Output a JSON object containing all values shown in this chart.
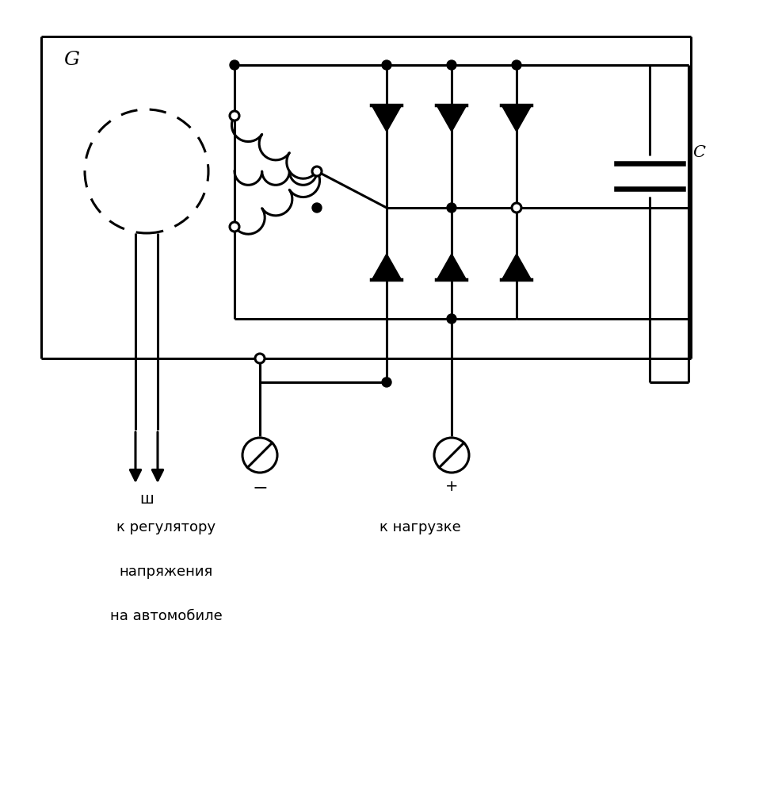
{
  "bg_color": "#ffffff",
  "line_color": "#000000",
  "lw": 2.2,
  "fig_width": 9.58,
  "fig_height": 10.24,
  "dpi": 100,
  "label_G": "G",
  "label_C": "C",
  "label_sh": "ш",
  "label_minus": "−",
  "label_plus": "+",
  "text_reg_1": "к регулятору",
  "text_reg_2": "напряжения",
  "text_reg_3": "на автомобиле",
  "text_load": "к нагрузке"
}
